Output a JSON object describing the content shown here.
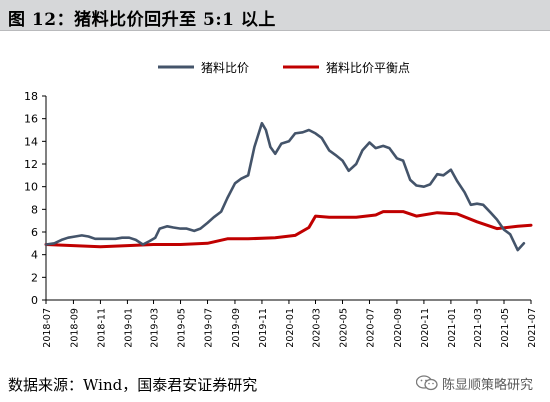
{
  "figure": {
    "title": "图 12：猪料比价回升至 5:1 以上",
    "source": "数据来源：Wind，国泰君安证券研究",
    "watermark_text": "陈显顺策略研究",
    "watermark_icon": "wechat-icon"
  },
  "chart_data": {
    "type": "line",
    "title": "",
    "xlabel": "",
    "ylabel": "",
    "ylim": [
      0,
      18
    ],
    "yticks": [
      0,
      2,
      4,
      6,
      8,
      10,
      12,
      14,
      16,
      18
    ],
    "x_range": [
      "2018-07",
      "2021-07"
    ],
    "xticks": [
      "2018-07",
      "2018-09",
      "2018-11",
      "2019-01",
      "2019-03",
      "2019-05",
      "2019-07",
      "2019-09",
      "2019-11",
      "2020-01",
      "2020-03",
      "2020-05",
      "2020-07",
      "2020-09",
      "2020-11",
      "2021-01",
      "2021-03",
      "2021-05",
      "2021-07"
    ],
    "grid": false,
    "legend": "top-center",
    "colors": {
      "axis": "#000000"
    },
    "series": [
      {
        "name": "猪料比价",
        "color": "#44546a",
        "points": [
          [
            "2018-07-01",
            4.9
          ],
          [
            "2018-07-20",
            5.0
          ],
          [
            "2018-08-05",
            5.3
          ],
          [
            "2018-08-20",
            5.5
          ],
          [
            "2018-09-05",
            5.6
          ],
          [
            "2018-09-20",
            5.7
          ],
          [
            "2018-10-05",
            5.6
          ],
          [
            "2018-10-20",
            5.4
          ],
          [
            "2018-11-05",
            5.4
          ],
          [
            "2018-11-20",
            5.4
          ],
          [
            "2018-12-05",
            5.4
          ],
          [
            "2018-12-20",
            5.5
          ],
          [
            "2019-01-05",
            5.5
          ],
          [
            "2019-01-20",
            5.3
          ],
          [
            "2019-02-05",
            4.9
          ],
          [
            "2019-02-20",
            5.2
          ],
          [
            "2019-03-05",
            5.5
          ],
          [
            "2019-03-15",
            6.3
          ],
          [
            "2019-04-01",
            6.5
          ],
          [
            "2019-04-15",
            6.4
          ],
          [
            "2019-05-01",
            6.3
          ],
          [
            "2019-05-15",
            6.3
          ],
          [
            "2019-06-01",
            6.1
          ],
          [
            "2019-06-15",
            6.3
          ],
          [
            "2019-07-01",
            6.8
          ],
          [
            "2019-07-15",
            7.3
          ],
          [
            "2019-08-01",
            7.8
          ],
          [
            "2019-08-15",
            9.0
          ],
          [
            "2019-09-01",
            10.3
          ],
          [
            "2019-09-15",
            10.7
          ],
          [
            "2019-10-01",
            11.0
          ],
          [
            "2019-10-15",
            13.5
          ],
          [
            "2019-11-01",
            15.6
          ],
          [
            "2019-11-10",
            15.0
          ],
          [
            "2019-11-20",
            13.5
          ],
          [
            "2019-12-01",
            12.9
          ],
          [
            "2019-12-15",
            13.8
          ],
          [
            "2020-01-01",
            14.0
          ],
          [
            "2020-01-15",
            14.7
          ],
          [
            "2020-02-01",
            14.8
          ],
          [
            "2020-02-15",
            15.0
          ],
          [
            "2020-03-01",
            14.7
          ],
          [
            "2020-03-15",
            14.3
          ],
          [
            "2020-04-01",
            13.2
          ],
          [
            "2020-04-15",
            12.8
          ],
          [
            "2020-05-01",
            12.3
          ],
          [
            "2020-05-15",
            11.4
          ],
          [
            "2020-06-01",
            12.0
          ],
          [
            "2020-06-15",
            13.2
          ],
          [
            "2020-07-01",
            13.9
          ],
          [
            "2020-07-15",
            13.4
          ],
          [
            "2020-08-01",
            13.6
          ],
          [
            "2020-08-15",
            13.4
          ],
          [
            "2020-09-01",
            12.5
          ],
          [
            "2020-09-15",
            12.3
          ],
          [
            "2020-10-01",
            10.6
          ],
          [
            "2020-10-15",
            10.1
          ],
          [
            "2020-11-01",
            10.0
          ],
          [
            "2020-11-15",
            10.2
          ],
          [
            "2020-12-01",
            11.1
          ],
          [
            "2020-12-15",
            11.0
          ],
          [
            "2021-01-01",
            11.5
          ],
          [
            "2021-01-15",
            10.5
          ],
          [
            "2021-02-01",
            9.5
          ],
          [
            "2021-02-15",
            8.4
          ],
          [
            "2021-03-01",
            8.5
          ],
          [
            "2021-03-15",
            8.4
          ],
          [
            "2021-04-01",
            7.7
          ],
          [
            "2021-04-15",
            7.1
          ],
          [
            "2021-05-01",
            6.2
          ],
          [
            "2021-05-15",
            5.8
          ],
          [
            "2021-06-01",
            4.4
          ],
          [
            "2021-06-15",
            5.0
          ]
        ]
      },
      {
        "name": "猪料比价平衡点",
        "color": "#c00000",
        "points": [
          [
            "2018-07-01",
            4.9
          ],
          [
            "2018-09-01",
            4.8
          ],
          [
            "2018-11-01",
            4.7
          ],
          [
            "2019-01-01",
            4.8
          ],
          [
            "2019-03-01",
            4.9
          ],
          [
            "2019-05-01",
            4.9
          ],
          [
            "2019-07-01",
            5.0
          ],
          [
            "2019-08-15",
            5.4
          ],
          [
            "2019-10-01",
            5.4
          ],
          [
            "2019-12-01",
            5.5
          ],
          [
            "2020-01-15",
            5.7
          ],
          [
            "2020-02-15",
            6.4
          ],
          [
            "2020-03-01",
            7.4
          ],
          [
            "2020-04-01",
            7.3
          ],
          [
            "2020-06-01",
            7.3
          ],
          [
            "2020-07-15",
            7.5
          ],
          [
            "2020-08-01",
            7.8
          ],
          [
            "2020-09-15",
            7.8
          ],
          [
            "2020-10-15",
            7.4
          ],
          [
            "2020-12-01",
            7.7
          ],
          [
            "2021-01-15",
            7.6
          ],
          [
            "2021-03-01",
            6.9
          ],
          [
            "2021-04-15",
            6.3
          ],
          [
            "2021-06-01",
            6.5
          ],
          [
            "2021-07-01",
            6.6
          ]
        ]
      }
    ]
  }
}
